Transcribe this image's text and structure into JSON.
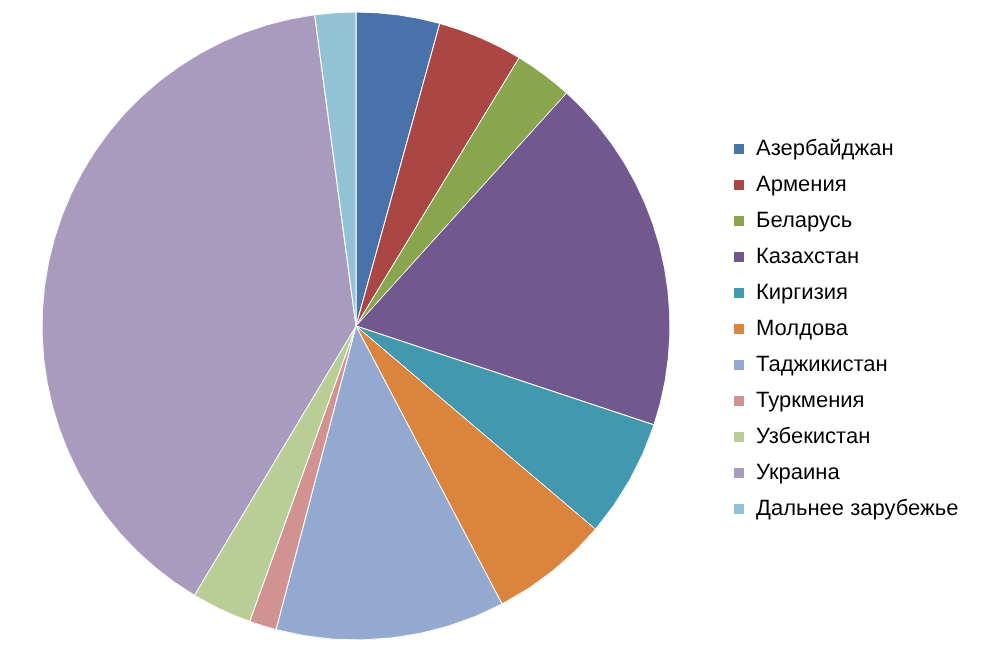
{
  "chart_data": {
    "type": "pie",
    "categories": [
      "Азербайджан",
      "Армения",
      "Беларусь",
      "Казахстан",
      "Киргизия",
      "Молдова",
      "Таджикистан",
      "Туркмения",
      "Узбекистан",
      "Украина",
      "Дальнее зарубежье"
    ],
    "values": [
      4.3,
      4.4,
      3.0,
      18.4,
      6.1,
      6.1,
      11.8,
      1.4,
      3.1,
      39.3,
      2.1
    ],
    "colors": [
      "#4a72aa",
      "#aa4644",
      "#89a54e",
      "#71588f",
      "#4198af",
      "#db843d",
      "#93a9cf",
      "#d19392",
      "#b9cd96",
      "#a99bbd",
      "#92c3d4"
    ],
    "legend": "right"
  }
}
